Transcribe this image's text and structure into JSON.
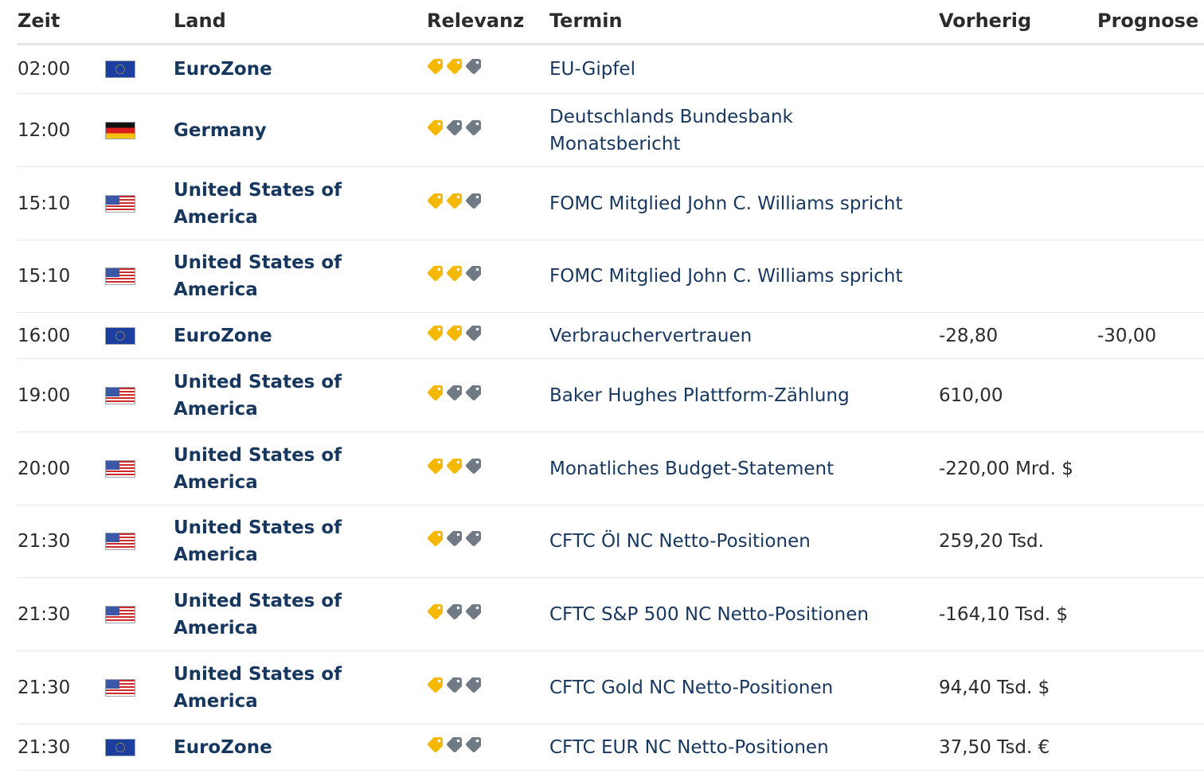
{
  "colors": {
    "tag_active": "#f5b800",
    "tag_inactive": "#707a84",
    "country_text": "#17375e"
  },
  "header": {
    "time": "Zeit",
    "country": "Land",
    "relevance": "Relevanz",
    "event": "Termin",
    "previous": "Vorherig",
    "forecast": "Prognose"
  },
  "rows": [
    {
      "time": "02:00",
      "flag": "eu-flag-icon",
      "country": "EuroZone",
      "relevance": 2,
      "event": "EU-Gipfel",
      "previous": "",
      "forecast": ""
    },
    {
      "time": "12:00",
      "flag": "germany-flag-icon",
      "country": "Germany",
      "relevance": 1,
      "event": "Deutschlands Bundesbank Monatsbericht",
      "previous": "",
      "forecast": ""
    },
    {
      "time": "15:10",
      "flag": "usa-flag-icon",
      "country": "United States of America",
      "relevance": 2,
      "event": "FOMC Mitglied John C. Williams spricht",
      "previous": "",
      "forecast": ""
    },
    {
      "time": "15:10",
      "flag": "usa-flag-icon",
      "country": "United States of America",
      "relevance": 2,
      "event": "FOMC Mitglied John C. Williams spricht",
      "previous": "",
      "forecast": ""
    },
    {
      "time": "16:00",
      "flag": "eu-flag-icon",
      "country": "EuroZone",
      "relevance": 2,
      "event": "Verbrauchervertrauen",
      "previous": "-28,80",
      "forecast": "-30,00"
    },
    {
      "time": "19:00",
      "flag": "usa-flag-icon",
      "country": "United States of America",
      "relevance": 1,
      "event": "Baker Hughes Plattform-Zählung",
      "previous": "610,00",
      "forecast": ""
    },
    {
      "time": "20:00",
      "flag": "usa-flag-icon",
      "country": "United States of America",
      "relevance": 2,
      "event": "Monatliches Budget-Statement",
      "previous": "-220,00 Mrd. $",
      "forecast": ""
    },
    {
      "time": "21:30",
      "flag": "usa-flag-icon",
      "country": "United States of America",
      "relevance": 1,
      "event": "CFTC Öl NC Netto-Positionen",
      "previous": "259,20 Tsd.",
      "forecast": ""
    },
    {
      "time": "21:30",
      "flag": "usa-flag-icon",
      "country": "United States of America",
      "relevance": 1,
      "event": "CFTC S&P 500 NC Netto-Positionen",
      "previous": "-164,10 Tsd. $",
      "forecast": ""
    },
    {
      "time": "21:30",
      "flag": "usa-flag-icon",
      "country": "United States of America",
      "relevance": 1,
      "event": "CFTC Gold NC Netto-Positionen",
      "previous": "94,40 Tsd. $",
      "forecast": ""
    },
    {
      "time": "21:30",
      "flag": "eu-flag-icon",
      "country": "EuroZone",
      "relevance": 1,
      "event": "CFTC EUR NC Netto-Positionen",
      "previous": "37,50 Tsd. €",
      "forecast": ""
    }
  ]
}
